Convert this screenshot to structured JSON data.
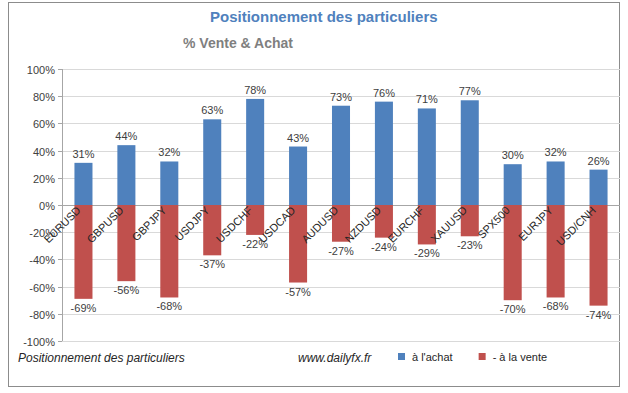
{
  "chart_data": {
    "type": "bar",
    "title": "Positionnement des particuliers",
    "subtitle": "% Vente & Achat",
    "footer": "Positionnement des particuliers",
    "source": "www.dailyfx.fr",
    "categories": [
      "EURUSD",
      "GBPUSD",
      "GBPJPY",
      "USDJPY",
      "USDCHF",
      "USDCAD",
      "AUDUSD",
      "NZDUSD",
      "EURCHF",
      "XAUUSD",
      "SPX500",
      "EURJPY",
      "USD/CNH"
    ],
    "series": [
      {
        "name": "à l'achat",
        "color": "#4f81bd",
        "values": [
          31,
          44,
          32,
          63,
          78,
          43,
          73,
          76,
          71,
          77,
          30,
          32,
          26
        ],
        "value_labels": [
          "31%",
          "44%",
          "32%",
          "63%",
          "78%",
          "43%",
          "73%",
          "76%",
          "71%",
          "77%",
          "30%",
          "32%",
          "26%"
        ]
      },
      {
        "name": "- à la vente",
        "color": "#c0504d",
        "values": [
          -69,
          -56,
          -68,
          -37,
          -22,
          -57,
          -27,
          -24,
          -29,
          -23,
          -70,
          -68,
          -74
        ],
        "value_labels": [
          "-69%",
          "-56%",
          "-68%",
          "-37%",
          "-22%",
          "-57%",
          "-27%",
          "-24%",
          "-29%",
          "-23%",
          "-70%",
          "-68%",
          "-74%"
        ]
      }
    ],
    "ylim": [
      -100,
      100
    ],
    "yticks": [
      {
        "value": -100,
        "label": "-100%"
      },
      {
        "value": -80,
        "label": "-80%"
      },
      {
        "value": -60,
        "label": "-60%"
      },
      {
        "value": -40,
        "label": "-40%"
      },
      {
        "value": -20,
        "label": "-20%"
      },
      {
        "value": 0,
        "label": "0%"
      },
      {
        "value": 20,
        "label": "20%"
      },
      {
        "value": 40,
        "label": "40%"
      },
      {
        "value": 60,
        "label": "60%"
      },
      {
        "value": 80,
        "label": "80%"
      },
      {
        "value": 100,
        "label": "100%"
      }
    ],
    "grid": true,
    "stacked": true,
    "data_labels": true,
    "legend": "bottom"
  }
}
